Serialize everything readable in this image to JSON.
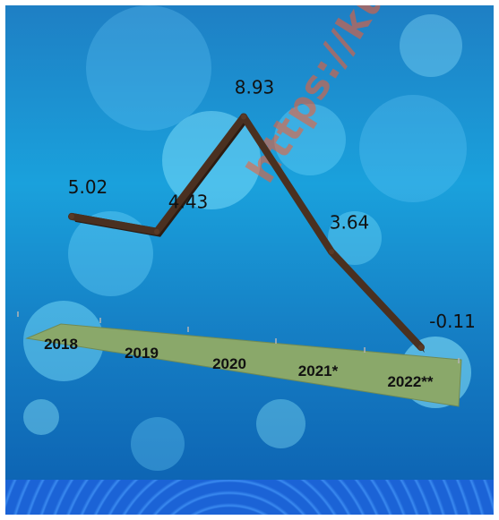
{
  "chart_data": {
    "type": "line",
    "categories": [
      "2018",
      "2019",
      "2020",
      "2021*",
      "2022**"
    ],
    "values": [
      5.02,
      4.43,
      8.93,
      3.64,
      -0.11
    ],
    "data_labels": [
      "5.02",
      "4.43",
      "8.93",
      "3.64",
      "-0.11"
    ],
    "grid": false,
    "legend": "none"
  },
  "watermark": {
    "text": "https://kudus"
  },
  "colors": {
    "line": "#4a3020",
    "floor": "#8aa86a",
    "background": "#1aa1dc"
  }
}
